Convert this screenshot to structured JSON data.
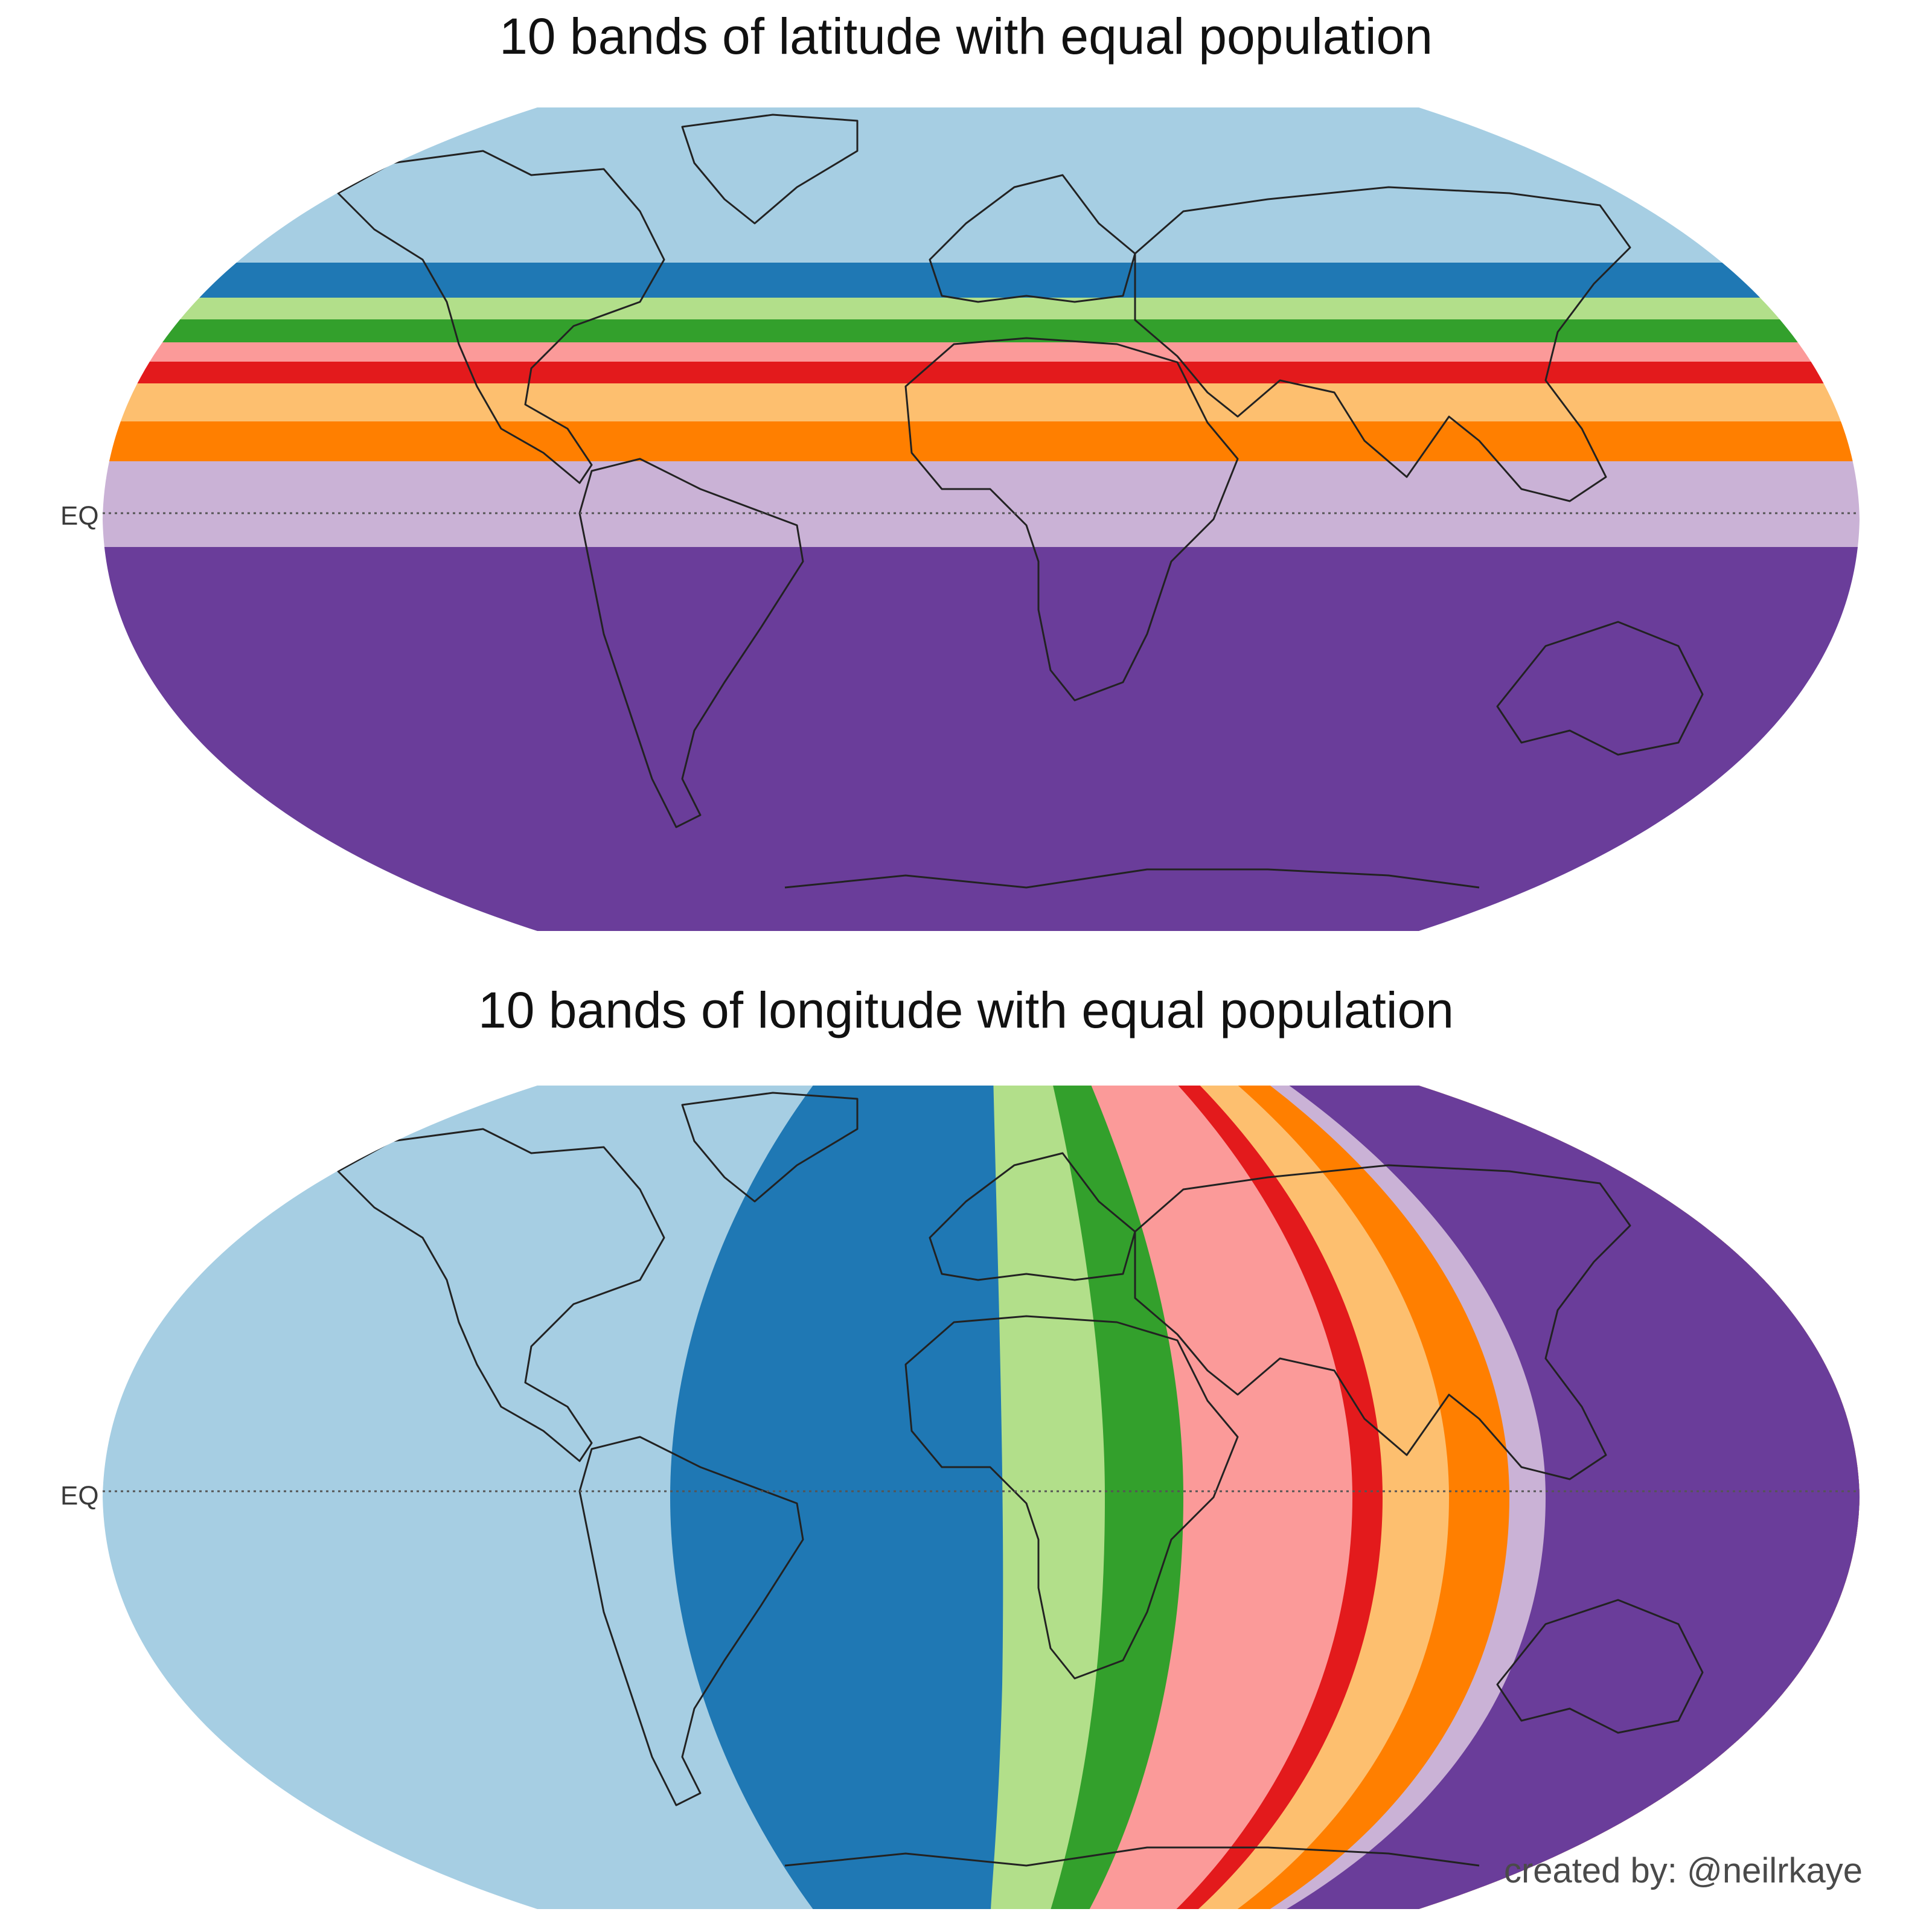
{
  "top_map": {
    "title": "10 bands of latitude with equal population",
    "equator_label": "EQ",
    "band_colors": [
      "#a6cee3",
      "#1f78b4",
      "#b2df8a",
      "#33a02c",
      "#fb9a99",
      "#e31a1c",
      "#fdbf6f",
      "#ff7f00",
      "#cab2d6",
      "#6a3d9a"
    ]
  },
  "bottom_map": {
    "title": "10 bands of longitude with equal population",
    "equator_label": "EQ",
    "band_colors": [
      "#a6cee3",
      "#1f78b4",
      "#b2df8a",
      "#33a02c",
      "#fb9a99",
      "#e31a1c",
      "#fdbf6f",
      "#ff7f00",
      "#cab2d6",
      "#6a3d9a"
    ]
  },
  "credit": "created by: @neilrkaye"
}
